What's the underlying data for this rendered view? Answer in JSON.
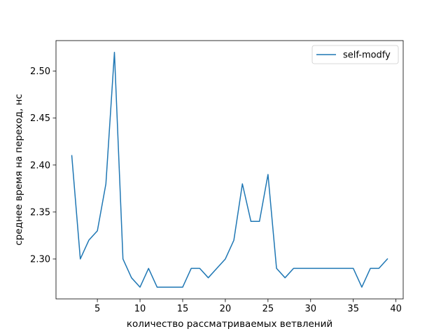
{
  "chart_data": {
    "type": "line",
    "title": "",
    "xlabel": "количество рассматриваемых ветвлений",
    "ylabel": "среднее время на переход, нс",
    "xlim": [
      0.15,
      40.85
    ],
    "ylim": [
      2.2575,
      2.5325
    ],
    "xticks": [
      5,
      10,
      15,
      20,
      25,
      30,
      35,
      40
    ],
    "yticks": [
      2.3,
      2.35,
      2.4,
      2.45,
      2.5
    ],
    "yticks_text": [
      "2.30",
      "2.35",
      "2.40",
      "2.45",
      "2.50"
    ],
    "grid": false,
    "legend": "top-right",
    "series": [
      {
        "name": "self-modfy",
        "color": "#1f77b4",
        "x": [
          2,
          3,
          4,
          5,
          6,
          7,
          8,
          9,
          10,
          11,
          12,
          13,
          14,
          15,
          16,
          17,
          18,
          19,
          20,
          21,
          22,
          23,
          24,
          25,
          26,
          27,
          28,
          29,
          30,
          31,
          32,
          33,
          34,
          35,
          36,
          37,
          38,
          39
        ],
        "y": [
          2.41,
          2.3,
          2.32,
          2.33,
          2.38,
          2.52,
          2.3,
          2.28,
          2.27,
          2.29,
          2.27,
          2.27,
          2.27,
          2.27,
          2.29,
          2.29,
          2.28,
          2.29,
          2.3,
          2.32,
          2.38,
          2.34,
          2.34,
          2.39,
          2.29,
          2.28,
          2.29,
          2.29,
          2.29,
          2.29,
          2.29,
          2.29,
          2.29,
          2.29,
          2.27,
          2.29,
          2.29,
          2.3
        ]
      }
    ]
  }
}
